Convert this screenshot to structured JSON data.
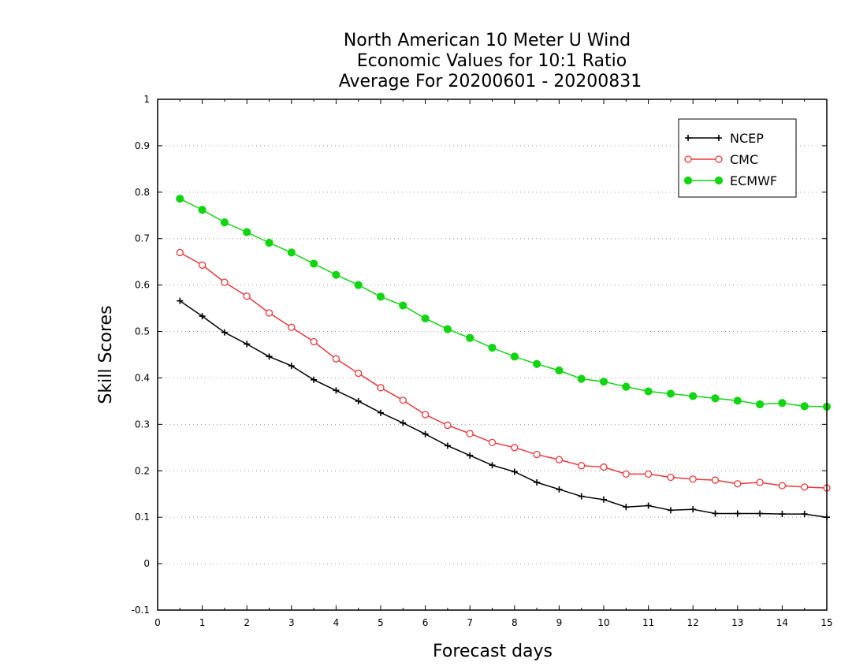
{
  "chart_data": {
    "type": "line",
    "title_lines": [
      "North American 10 Meter U Wind",
      "Economic Values for 10:1 Ratio",
      "Average For 20200601 - 20200831"
    ],
    "xlabel": "Forecast days",
    "ylabel": "Skill Scores",
    "xlim": [
      0,
      15
    ],
    "ylim": [
      -0.1,
      1
    ],
    "x_ticks": [
      0,
      1,
      2,
      3,
      4,
      5,
      6,
      7,
      8,
      9,
      10,
      11,
      12,
      13,
      14,
      15
    ],
    "y_ticks": [
      -0.1,
      0,
      0.1,
      0.2,
      0.3,
      0.4,
      0.5,
      0.6,
      0.7,
      0.8,
      0.9,
      1
    ],
    "y_tick_labels": [
      "-0.1",
      "0",
      "0.1",
      "0.2",
      "0.3",
      "0.4",
      "0.5",
      "0.6",
      "0.7",
      "0.8",
      "0.9",
      "1"
    ],
    "grid": true,
    "legend_position": "top-right",
    "x": [
      0.5,
      1,
      1.5,
      2,
      2.5,
      3,
      3.5,
      4,
      4.5,
      5,
      5.5,
      6,
      6.5,
      7,
      7.5,
      8,
      8.5,
      9,
      9.5,
      10,
      10.5,
      11,
      11.5,
      12,
      12.5,
      13,
      13.5,
      14,
      14.5,
      15
    ],
    "series": [
      {
        "name": "NCEP",
        "color": "#000000",
        "marker": "plus",
        "values": [
          0.566,
          0.533,
          0.498,
          0.473,
          0.446,
          0.426,
          0.396,
          0.373,
          0.35,
          0.325,
          0.303,
          0.279,
          0.254,
          0.233,
          0.212,
          0.198,
          0.175,
          0.16,
          0.145,
          0.138,
          0.122,
          0.125,
          0.115,
          0.117,
          0.108,
          0.108,
          0.108,
          0.107,
          0.107,
          0.1
        ]
      },
      {
        "name": "CMC",
        "color": "#e8393c",
        "marker": "open-circle",
        "values": [
          0.67,
          0.643,
          0.606,
          0.576,
          0.54,
          0.509,
          0.478,
          0.441,
          0.41,
          0.379,
          0.352,
          0.321,
          0.298,
          0.28,
          0.261,
          0.25,
          0.235,
          0.224,
          0.211,
          0.208,
          0.193,
          0.193,
          0.186,
          0.182,
          0.18,
          0.172,
          0.175,
          0.168,
          0.165,
          0.163
        ]
      },
      {
        "name": "ECMWF",
        "color": "#12d512",
        "marker": "filled-circle",
        "values": [
          0.786,
          0.762,
          0.735,
          0.714,
          0.691,
          0.67,
          0.646,
          0.622,
          0.6,
          0.575,
          0.556,
          0.528,
          0.505,
          0.486,
          0.465,
          0.446,
          0.43,
          0.416,
          0.398,
          0.392,
          0.381,
          0.371,
          0.366,
          0.361,
          0.356,
          0.351,
          0.343,
          0.346,
          0.339,
          0.338
        ]
      }
    ]
  }
}
